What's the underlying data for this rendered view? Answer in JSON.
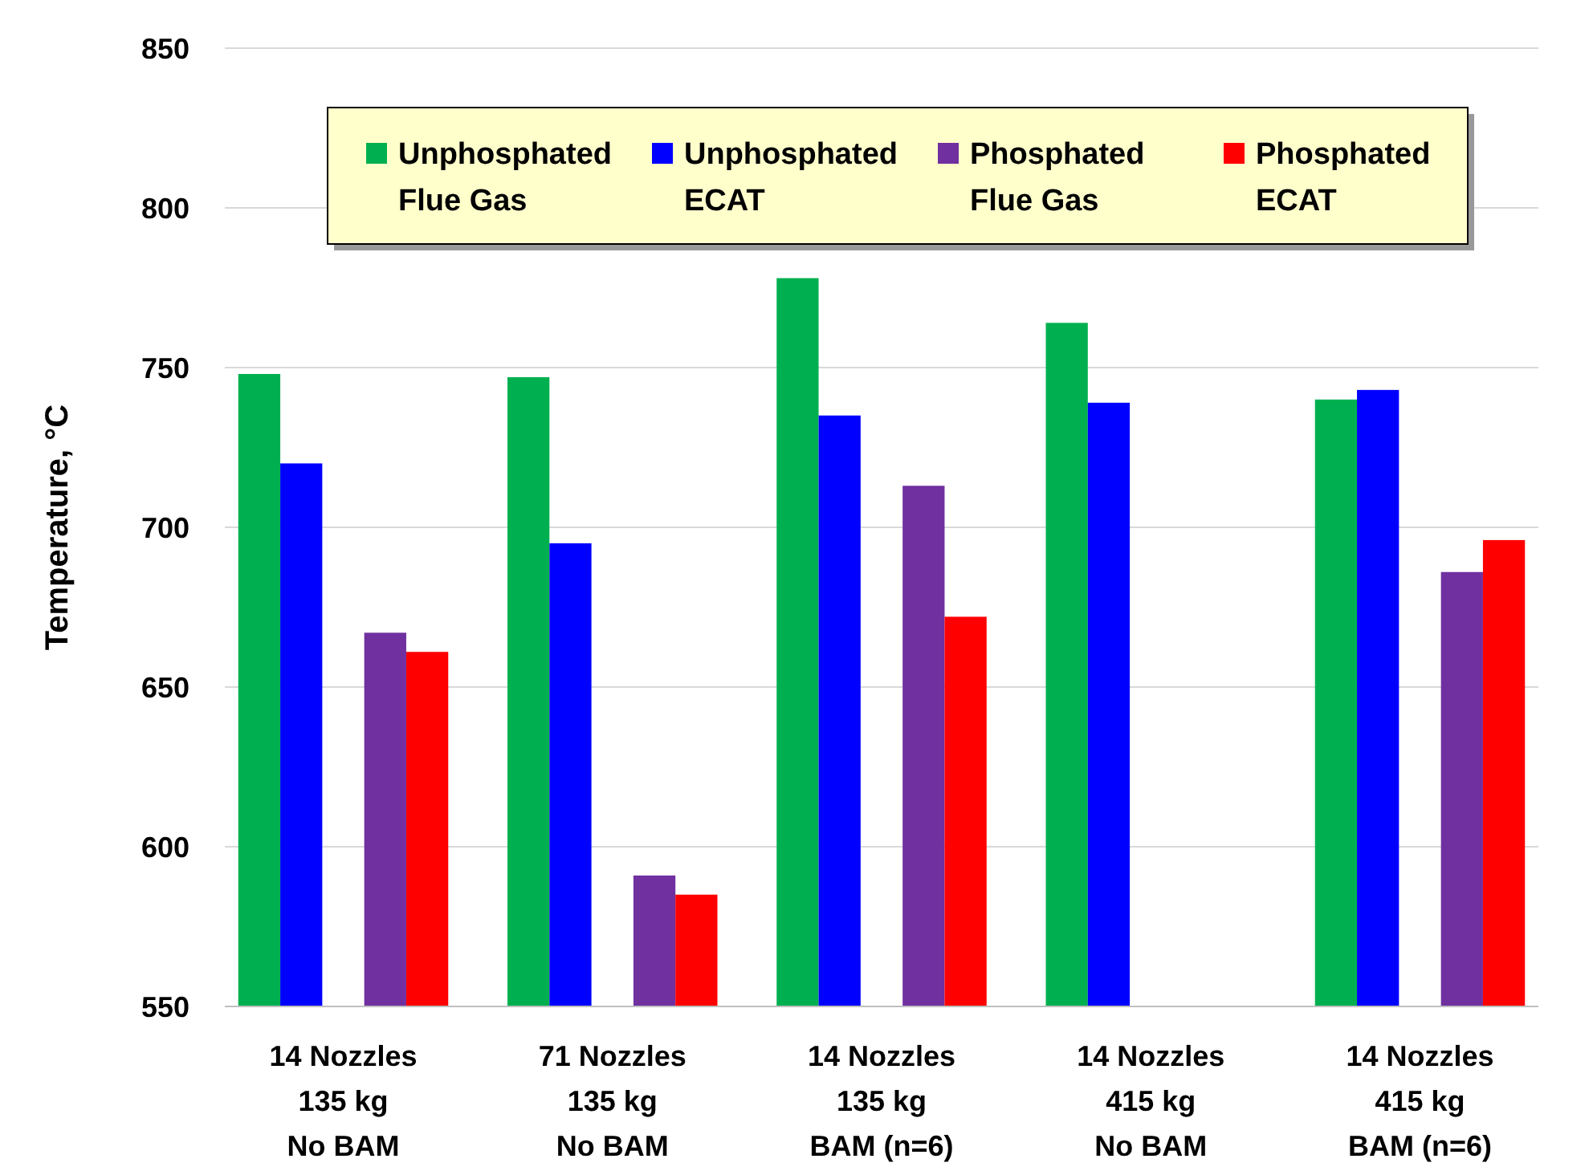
{
  "chart_data": {
    "type": "bar",
    "ylabel": "Temperature, °C",
    "categories": [
      "14 Nozzles\n135 kg\nNo BAM",
      "71 Nozzles\n135 kg\nNo BAM",
      "14 Nozzles\n135 kg\nBAM (n=6)",
      "14 Nozzles\n415 kg\nNo BAM",
      "14 Nozzles\n415 kg\nBAM (n=6)"
    ],
    "series": [
      {
        "name": "Unphosphated\nFlue Gas",
        "color": "#00b050",
        "values": [
          748,
          747,
          778,
          764,
          740
        ]
      },
      {
        "name": "Unphosphated\nECAT",
        "color": "#0000ff",
        "values": [
          720,
          695,
          735,
          739,
          743
        ]
      },
      {
        "name": "Phosphated\nFlue Gas",
        "color": "#7030a0",
        "values": [
          667,
          591,
          713,
          null,
          686
        ]
      },
      {
        "name": "Phosphated\nECAT",
        "color": "#ff0000",
        "values": [
          661,
          585,
          672,
          null,
          696
        ]
      }
    ],
    "ylim": [
      550,
      850
    ],
    "yticks": [
      550,
      600,
      650,
      700,
      750,
      800,
      850
    ],
    "grid": "y",
    "legend": "top"
  }
}
